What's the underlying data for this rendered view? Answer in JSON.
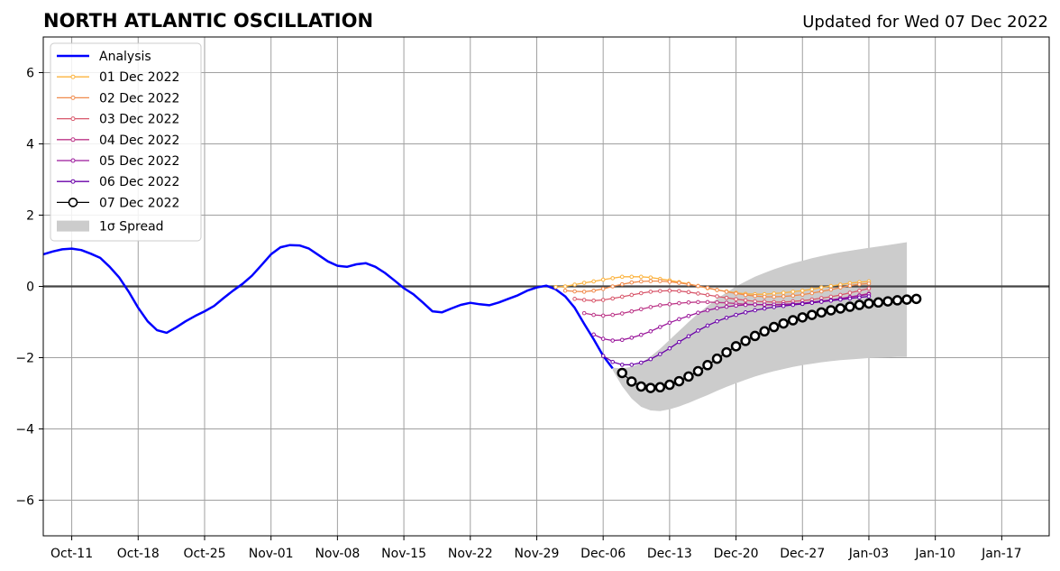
{
  "chart_data": {
    "type": "line",
    "title": "NORTH ATLANTIC OSCILLATION",
    "subtitle": "Updated for Wed 07 Dec 2022",
    "xlabel": "",
    "ylabel": "",
    "xlim": [
      "2022-10-08",
      "2023-01-22"
    ],
    "ylim": [
      -7,
      7
    ],
    "x_ticks": [
      "2022-10-11",
      "2022-10-18",
      "2022-10-25",
      "2022-11-01",
      "2022-11-08",
      "2022-11-15",
      "2022-11-22",
      "2022-11-29",
      "2022-12-06",
      "2022-12-13",
      "2022-12-20",
      "2022-12-27",
      "2023-01-03",
      "2023-01-10",
      "2023-01-17"
    ],
    "x_tick_labels": [
      "Oct-11",
      "Oct-18",
      "Oct-25",
      "Nov-01",
      "Nov-08",
      "Nov-15",
      "Nov-22",
      "Nov-29",
      "Dec-06",
      "Dec-13",
      "Dec-20",
      "Dec-27",
      "Jan-03",
      "Jan-10",
      "Jan-17"
    ],
    "y_ticks": [
      -6,
      -4,
      -2,
      0,
      2,
      4,
      6
    ],
    "y_tick_labels": [
      "−6",
      "−4",
      "−2",
      "0",
      "2",
      "4",
      "6"
    ],
    "grid": true,
    "legend_position": "top-left",
    "legend": [
      {
        "label": "Analysis",
        "color": "#0000ff",
        "kind": "line"
      },
      {
        "label": "01 Dec 2022",
        "color": "#fcb33d",
        "kind": "dotline"
      },
      {
        "label": "02 Dec 2022",
        "color": "#f08a4b",
        "kind": "dotline"
      },
      {
        "label": "03 Dec 2022",
        "color": "#d8576b",
        "kind": "dotline"
      },
      {
        "label": "04 Dec 2022",
        "color": "#bc3587",
        "kind": "dotline"
      },
      {
        "label": "05 Dec 2022",
        "color": "#9a179b",
        "kind": "dotline"
      },
      {
        "label": "06 Dec 2022",
        "color": "#6a00a8",
        "kind": "dotline"
      },
      {
        "label": "07 Dec 2022",
        "color": "#000000",
        "kind": "bigcircle"
      },
      {
        "label": "1σ Spread",
        "color": "#cccccc",
        "kind": "patch"
      }
    ],
    "series": [
      {
        "name": "Analysis",
        "color": "#0000ff",
        "x": [
          "2022-10-08",
          "2022-10-09",
          "2022-10-10",
          "2022-10-11",
          "2022-10-12",
          "2022-10-13",
          "2022-10-14",
          "2022-10-15",
          "2022-10-16",
          "2022-10-17",
          "2022-10-18",
          "2022-10-19",
          "2022-10-20",
          "2022-10-21",
          "2022-10-22",
          "2022-10-23",
          "2022-10-24",
          "2022-10-25",
          "2022-10-26",
          "2022-10-27",
          "2022-10-28",
          "2022-10-29",
          "2022-10-30",
          "2022-10-31",
          "2022-11-01",
          "2022-11-02",
          "2022-11-03",
          "2022-11-04",
          "2022-11-05",
          "2022-11-06",
          "2022-11-07",
          "2022-11-08",
          "2022-11-09",
          "2022-11-10",
          "2022-11-11",
          "2022-11-12",
          "2022-11-13",
          "2022-11-14",
          "2022-11-15",
          "2022-11-16",
          "2022-11-17",
          "2022-11-18",
          "2022-11-19",
          "2022-11-20",
          "2022-11-21",
          "2022-11-22",
          "2022-11-23",
          "2022-11-24",
          "2022-11-25",
          "2022-11-26",
          "2022-11-27",
          "2022-11-28",
          "2022-11-29",
          "2022-11-30",
          "2022-12-01",
          "2022-12-02",
          "2022-12-03",
          "2022-12-04",
          "2022-12-05",
          "2022-12-06",
          "2022-12-07"
        ],
        "values": [
          0.9,
          0.98,
          1.04,
          1.06,
          1.02,
          0.92,
          0.8,
          0.55,
          0.25,
          -0.15,
          -0.6,
          -0.98,
          -1.23,
          -1.3,
          -1.15,
          -0.98,
          -0.83,
          -0.7,
          -0.55,
          -0.33,
          -0.12,
          0.07,
          0.3,
          0.6,
          0.9,
          1.1,
          1.16,
          1.15,
          1.06,
          0.88,
          0.7,
          0.58,
          0.55,
          0.62,
          0.65,
          0.55,
          0.38,
          0.17,
          -0.05,
          -0.22,
          -0.45,
          -0.7,
          -0.73,
          -0.62,
          -0.52,
          -0.46,
          -0.5,
          -0.53,
          -0.45,
          -0.35,
          -0.25,
          -0.12,
          -0.03,
          0.02,
          -0.08,
          -0.28,
          -0.6,
          -1.05,
          -1.48,
          -1.95,
          -2.3
        ]
      },
      {
        "name": "01 Dec 2022",
        "color": "#fcb33d",
        "x_start": "2022-12-01",
        "values": [
          -0.02,
          0,
          0.05,
          0.1,
          0.14,
          0.19,
          0.23,
          0.27,
          0.27,
          0.27,
          0.25,
          0.21,
          0.17,
          0.12,
          0.07,
          0.01,
          -0.05,
          -0.1,
          -0.14,
          -0.18,
          -0.21,
          -0.22,
          -0.22,
          -0.2,
          -0.18,
          -0.15,
          -0.12,
          -0.08,
          -0.03,
          0.01,
          0.05,
          0.09,
          0.12,
          0.14
        ]
      },
      {
        "name": "02 Dec 2022",
        "color": "#f08a4b",
        "x_start": "2022-12-02",
        "values": [
          -0.12,
          -0.14,
          -0.15,
          -0.12,
          -0.07,
          0,
          0.06,
          0.11,
          0.14,
          0.15,
          0.15,
          0.13,
          0.1,
          0.06,
          0.01,
          -0.04,
          -0.1,
          -0.15,
          -0.2,
          -0.24,
          -0.27,
          -0.29,
          -0.29,
          -0.28,
          -0.26,
          -0.23,
          -0.19,
          -0.14,
          -0.09,
          -0.03,
          0.02,
          0.06,
          0.08
        ]
      },
      {
        "name": "03 Dec 2022",
        "color": "#d8576b",
        "x_start": "2022-12-03",
        "values": [
          -0.35,
          -0.38,
          -0.4,
          -0.38,
          -0.34,
          -0.29,
          -0.24,
          -0.19,
          -0.15,
          -0.13,
          -0.12,
          -0.13,
          -0.16,
          -0.2,
          -0.24,
          -0.28,
          -0.32,
          -0.36,
          -0.39,
          -0.42,
          -0.43,
          -0.44,
          -0.44,
          -0.42,
          -0.4,
          -0.37,
          -0.33,
          -0.29,
          -0.24,
          -0.18,
          -0.12,
          -0.06
        ]
      },
      {
        "name": "04 Dec 2022",
        "color": "#bc3587",
        "x_start": "2022-12-04",
        "values": [
          -0.75,
          -0.8,
          -0.82,
          -0.8,
          -0.76,
          -0.7,
          -0.64,
          -0.58,
          -0.53,
          -0.5,
          -0.47,
          -0.45,
          -0.44,
          -0.44,
          -0.45,
          -0.46,
          -0.48,
          -0.5,
          -0.51,
          -0.52,
          -0.52,
          -0.52,
          -0.51,
          -0.49,
          -0.46,
          -0.43,
          -0.39,
          -0.35,
          -0.3,
          -0.25,
          -0.2
        ]
      },
      {
        "name": "05 Dec 2022",
        "color": "#9a179b",
        "x_start": "2022-12-05",
        "values": [
          -1.35,
          -1.47,
          -1.52,
          -1.5,
          -1.44,
          -1.36,
          -1.26,
          -1.14,
          -1.02,
          -0.92,
          -0.83,
          -0.74,
          -0.67,
          -0.61,
          -0.57,
          -0.54,
          -0.52,
          -0.51,
          -0.51,
          -0.51,
          -0.5,
          -0.49,
          -0.47,
          -0.44,
          -0.41,
          -0.38,
          -0.34,
          -0.3,
          -0.26,
          -0.22
        ]
      },
      {
        "name": "06 Dec 2022",
        "color": "#6a00a8",
        "x_start": "2022-12-06",
        "values": [
          -1.95,
          -2.12,
          -2.2,
          -2.2,
          -2.14,
          -2.04,
          -1.9,
          -1.74,
          -1.56,
          -1.4,
          -1.24,
          -1.1,
          -0.98,
          -0.88,
          -0.8,
          -0.73,
          -0.67,
          -0.62,
          -0.58,
          -0.55,
          -0.52,
          -0.49,
          -0.46,
          -0.43,
          -0.4,
          -0.37,
          -0.34,
          -0.31,
          -0.28
        ]
      },
      {
        "name": "07 Dec 2022",
        "color": "#000000",
        "x_start": "2022-12-08",
        "values": [
          -2.43,
          -2.67,
          -2.81,
          -2.85,
          -2.83,
          -2.76,
          -2.66,
          -2.53,
          -2.38,
          -2.21,
          -2.03,
          -1.85,
          -1.68,
          -1.53,
          -1.39,
          -1.26,
          -1.14,
          -1.04,
          -0.95,
          -0.87,
          -0.8,
          -0.73,
          -0.67,
          -0.62,
          -0.57,
          -0.52,
          -0.48,
          -0.45,
          -0.42,
          -0.39,
          -0.37,
          -0.35
        ]
      }
    ],
    "spread": {
      "name": "1σ Spread",
      "color": "#cccccc",
      "x": [
        "2022-12-07",
        "2022-12-08",
        "2022-12-09",
        "2022-12-10",
        "2022-12-11",
        "2022-12-12",
        "2022-12-13",
        "2022-12-14",
        "2022-12-15",
        "2022-12-16",
        "2022-12-17",
        "2022-12-18",
        "2022-12-19",
        "2022-12-20",
        "2022-12-21",
        "2022-12-22",
        "2022-12-23",
        "2022-12-24",
        "2022-12-25",
        "2022-12-26",
        "2022-12-27",
        "2022-12-28",
        "2022-12-29",
        "2022-12-30",
        "2022-12-31",
        "2023-01-01",
        "2023-01-02",
        "2023-01-03",
        "2023-01-04",
        "2023-01-05",
        "2023-01-06",
        "2023-01-07"
      ],
      "upper": [
        -2.28,
        -2.3,
        -2.26,
        -2.15,
        -1.97,
        -1.75,
        -1.5,
        -1.25,
        -1.0,
        -0.76,
        -0.55,
        -0.35,
        -0.17,
        0.0,
        0.14,
        0.27,
        0.38,
        0.48,
        0.57,
        0.65,
        0.72,
        0.79,
        0.85,
        0.91,
        0.96,
        1.0,
        1.04,
        1.08,
        1.12,
        1.16,
        1.2,
        1.24
      ],
      "lower": [
        -2.35,
        -2.8,
        -3.15,
        -3.38,
        -3.48,
        -3.5,
        -3.45,
        -3.37,
        -3.27,
        -3.16,
        -3.05,
        -2.93,
        -2.82,
        -2.72,
        -2.62,
        -2.53,
        -2.45,
        -2.38,
        -2.32,
        -2.26,
        -2.21,
        -2.17,
        -2.13,
        -2.1,
        -2.07,
        -2.05,
        -2.03,
        -2.01,
        -2.0,
        -1.99,
        -1.98,
        -1.98
      ]
    }
  }
}
